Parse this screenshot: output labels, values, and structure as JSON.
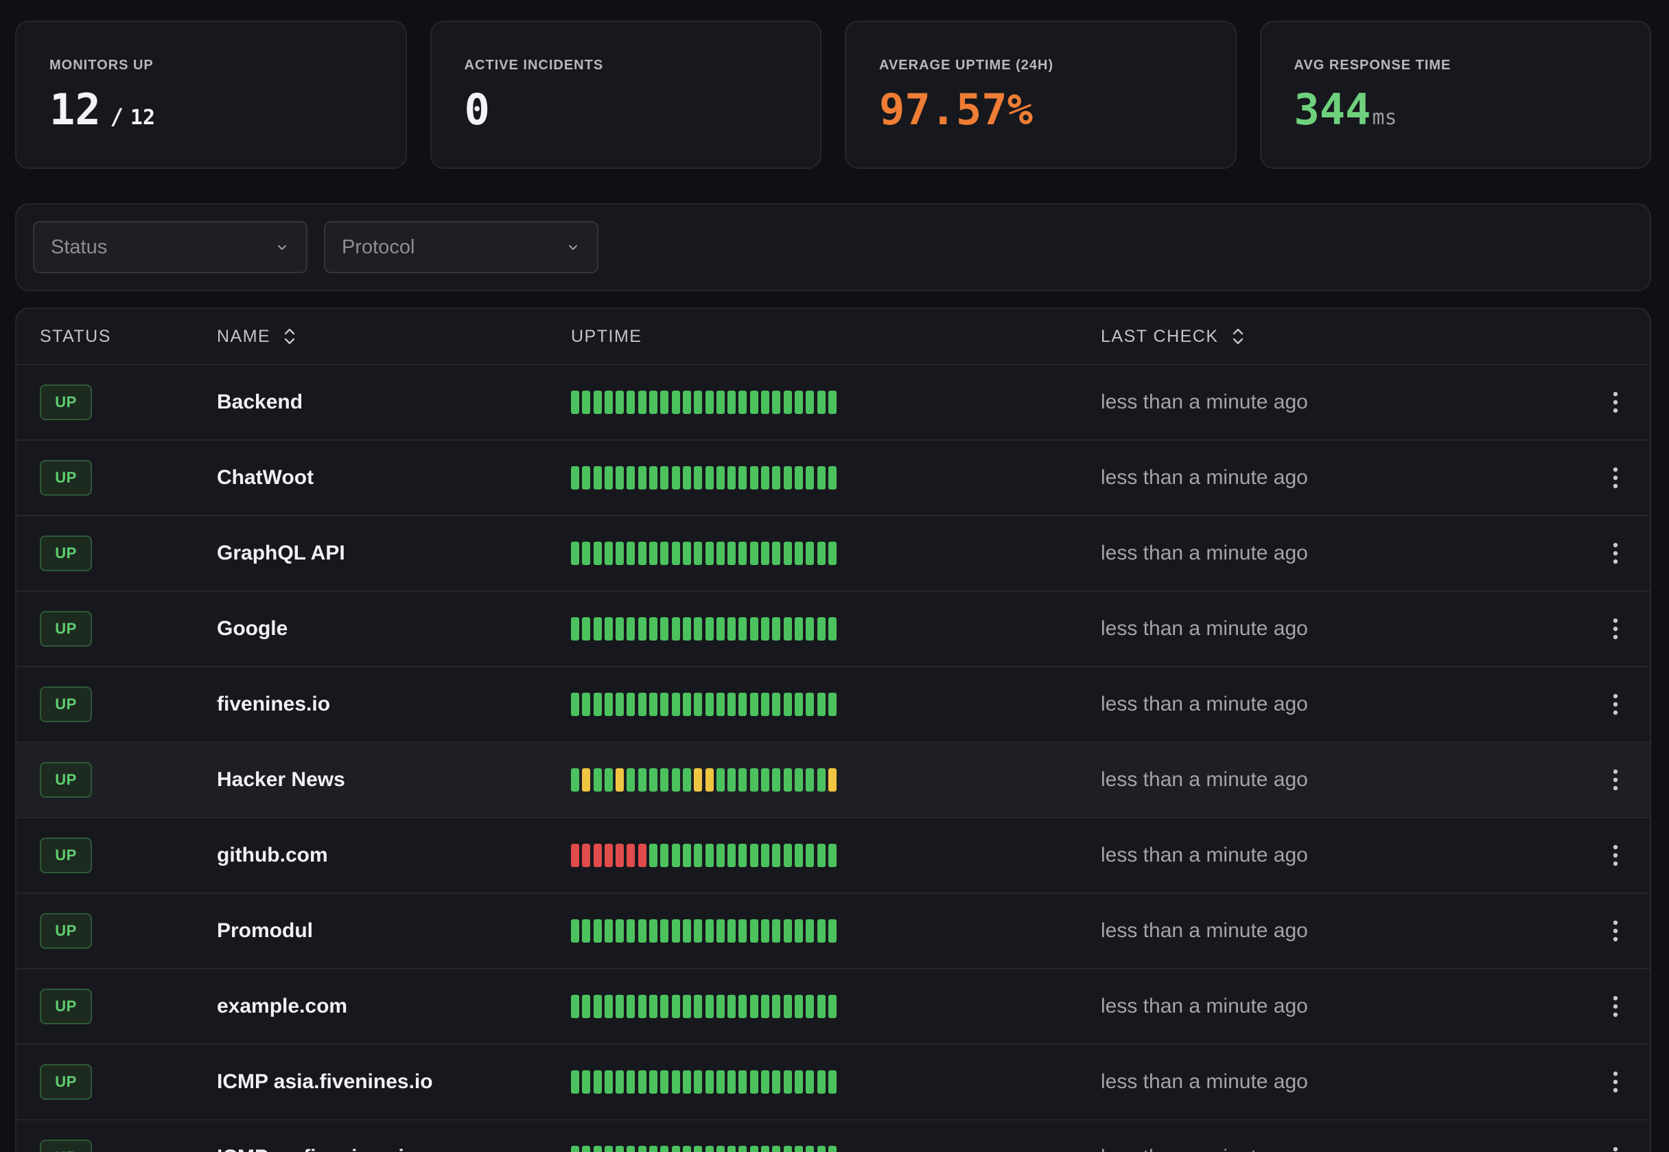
{
  "stats": {
    "monitors_up": {
      "label": "MONITORS UP",
      "value": "12",
      "separator": "/",
      "total": "12"
    },
    "active_incidents": {
      "label": "ACTIVE INCIDENTS",
      "value": "0"
    },
    "average_uptime": {
      "label": "AVERAGE UPTIME (24H)",
      "value": "97.57%",
      "color": "#ef7d35"
    },
    "avg_response_time": {
      "label": "AVG RESPONSE TIME",
      "value": "344",
      "unit": "ms",
      "color": "#6fd17d"
    }
  },
  "filters": {
    "status": {
      "placeholder": "Status",
      "icon": "chevron-down-icon"
    },
    "protocol": {
      "placeholder": "Protocol",
      "icon": "chevron-down-icon"
    }
  },
  "table": {
    "headers": {
      "status": "STATUS",
      "name": "NAME",
      "uptime": "UPTIME",
      "last_check": "LAST CHECK"
    },
    "colors": {
      "up": "#4cc25f",
      "degraded": "#f0c542",
      "down": "#e04b4b"
    },
    "rows": [
      {
        "status": "UP",
        "name": "Backend",
        "last_check": "less than a minute ago",
        "uptime_bars": "gggggggggggggggggggggggg"
      },
      {
        "status": "UP",
        "name": "ChatWoot",
        "last_check": "less than a minute ago",
        "uptime_bars": "gggggggggggggggggggggggg"
      },
      {
        "status": "UP",
        "name": "GraphQL API",
        "last_check": "less than a minute ago",
        "uptime_bars": "gggggggggggggggggggggggg"
      },
      {
        "status": "UP",
        "name": "Google",
        "last_check": "less than a minute ago",
        "uptime_bars": "gggggggggggggggggggggggg"
      },
      {
        "status": "UP",
        "name": "fivenines.io",
        "last_check": "less than a minute ago",
        "uptime_bars": "gggggggggggggggggggggggg"
      },
      {
        "status": "UP",
        "name": "Hacker News",
        "last_check": "less than a minute ago",
        "uptime_bars": "gyggyggggggyyggggggggggy",
        "highlighted": true
      },
      {
        "status": "UP",
        "name": "github.com",
        "last_check": "less than a minute ago",
        "uptime_bars": "rrrrrrrggggggggggggggggg"
      },
      {
        "status": "UP",
        "name": "Promodul",
        "last_check": "less than a minute ago",
        "uptime_bars": "gggggggggggggggggggggggg"
      },
      {
        "status": "UP",
        "name": "example.com",
        "last_check": "less than a minute ago",
        "uptime_bars": "gggggggggggggggggggggggg"
      },
      {
        "status": "UP",
        "name": "ICMP asia.fivenines.io",
        "last_check": "less than a minute ago",
        "uptime_bars": "gggggggggggggggggggggggg"
      },
      {
        "status": "UP",
        "name": "ICMP eu.fivenines.io",
        "last_check": "less than a minute ago",
        "uptime_bars": "gggggggggggggggggggggggg"
      }
    ]
  }
}
